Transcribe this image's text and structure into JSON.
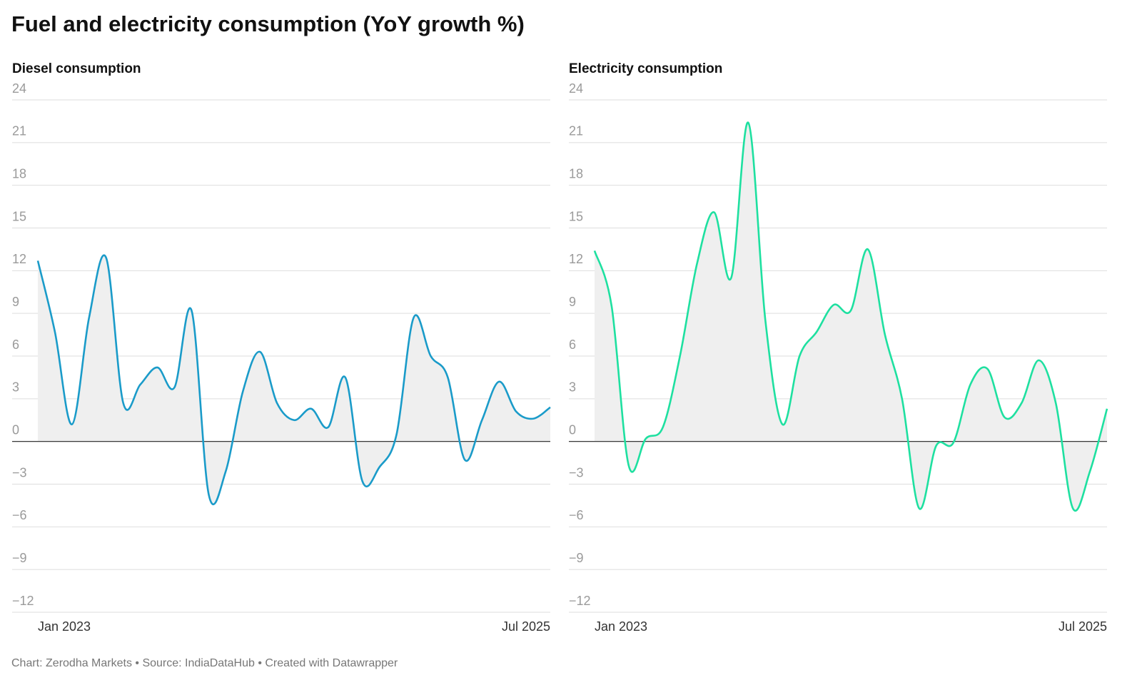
{
  "title": "Fuel and electricity consumption (YoY growth %)",
  "footer": "Chart: Zerodha Markets • Source: IndiaDataHub • Created with Datawrapper",
  "chart_data": [
    {
      "type": "line",
      "title": "Diesel consumption",
      "color": "#1a9bc9",
      "x": [
        "Jan 2023",
        "Feb 2023",
        "Mar 2023",
        "Apr 2023",
        "May 2023",
        "Jun 2023",
        "Jul 2023",
        "Aug 2023",
        "Sep 2023",
        "Oct 2023",
        "Nov 2023",
        "Dec 2023",
        "Jan 2024",
        "Feb 2024",
        "Mar 2024",
        "Apr 2024",
        "May 2024",
        "Jun 2024",
        "Jul 2024",
        "Aug 2024",
        "Sep 2024",
        "Oct 2024",
        "Nov 2024",
        "Dec 2024",
        "Jan 2025",
        "Feb 2025",
        "Mar 2025",
        "Apr 2025",
        "May 2025",
        "Jun 2025",
        "Jul 2025"
      ],
      "values": [
        12.7,
        7.7,
        1.2,
        8.7,
        12.9,
        2.7,
        4.0,
        5.2,
        3.8,
        9.2,
        -3.7,
        -2.1,
        3.5,
        6.3,
        2.7,
        1.5,
        2.3,
        1.0,
        4.5,
        -2.8,
        -1.8,
        0.5,
        8.7,
        6.0,
        4.5,
        -1.3,
        1.5,
        4.2,
        2.1,
        1.6,
        2.4
      ],
      "xticks": [
        "Jan 2023",
        "Jul 2025"
      ],
      "ylim": [
        -12,
        24
      ],
      "yticks": [
        {
          "value": -12,
          "label": "−12"
        },
        {
          "value": -9,
          "label": "−9"
        },
        {
          "value": -6,
          "label": "−6"
        },
        {
          "value": -3,
          "label": "−3"
        },
        0,
        3,
        6,
        9,
        12,
        15,
        18,
        21,
        24
      ],
      "grid": true
    },
    {
      "type": "line",
      "title": "Electricity consumption",
      "color": "#1ee0a0",
      "x": [
        "Jan 2023",
        "Feb 2023",
        "Mar 2023",
        "Apr 2023",
        "May 2023",
        "Jun 2023",
        "Jul 2023",
        "Aug 2023",
        "Sep 2023",
        "Oct 2023",
        "Nov 2023",
        "Dec 2023",
        "Jan 2024",
        "Feb 2024",
        "Mar 2024",
        "Apr 2024",
        "May 2024",
        "Jun 2024",
        "Jul 2024",
        "Aug 2024",
        "Sep 2024",
        "Oct 2024",
        "Nov 2024",
        "Dec 2024",
        "Jan 2025",
        "Feb 2025",
        "Mar 2025",
        "Apr 2025",
        "May 2025",
        "Jun 2025",
        "Jul 2025"
      ],
      "values": [
        13.4,
        9.5,
        -1.7,
        0.2,
        1.0,
        6.0,
        12.5,
        16.1,
        11.5,
        22.4,
        8.5,
        1.2,
        6.0,
        7.7,
        9.6,
        9.2,
        13.5,
        7.5,
        3.0,
        -4.7,
        -0.3,
        -0.1,
        4.0,
        5.1,
        1.7,
        2.7,
        5.7,
        2.7,
        -4.7,
        -2.1,
        2.3
      ],
      "xticks": [
        "Jan 2023",
        "Jul 2025"
      ],
      "ylim": [
        -12,
        24
      ],
      "yticks": [
        {
          "value": -12,
          "label": "−12"
        },
        {
          "value": -9,
          "label": "−9"
        },
        {
          "value": -6,
          "label": "−6"
        },
        {
          "value": -3,
          "label": "−3"
        },
        0,
        3,
        6,
        9,
        12,
        15,
        18,
        21,
        24
      ],
      "grid": true
    }
  ]
}
